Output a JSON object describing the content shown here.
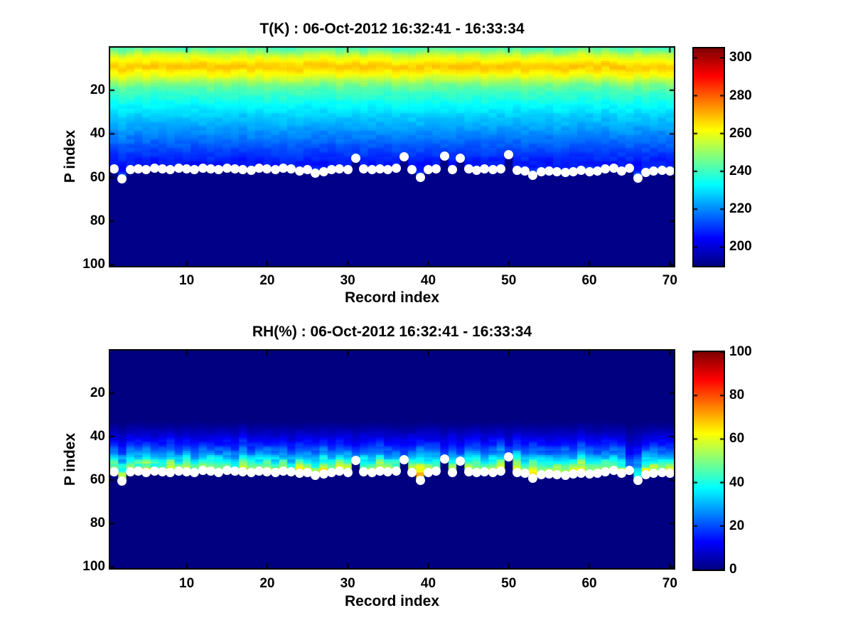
{
  "figure": {
    "background": "#ffffff",
    "axis_color": "#000000",
    "text_color": "#000000",
    "marker_color": "#ffffff"
  },
  "chart_data": [
    {
      "type": "heatmap",
      "title": "T(K) : 06-Oct-2012 16:32:41 - 16:33:34",
      "xlabel": "Record index",
      "ylabel": "P index",
      "colormap": "jet",
      "grid": false,
      "x_range": [
        1,
        70
      ],
      "y_range": [
        1,
        100
      ],
      "y_axis_reversed": true,
      "xticks": [
        10,
        20,
        30,
        40,
        50,
        60,
        70
      ],
      "yticks": [
        20,
        40,
        60,
        80,
        100
      ],
      "clim": [
        190,
        305
      ],
      "colorbar_ticks": [
        200,
        220,
        240,
        260,
        280,
        300
      ],
      "colorbar_position": "right",
      "profile_anchors": [
        [
          1,
          242
        ],
        [
          2,
          246
        ],
        [
          3,
          251
        ],
        [
          4,
          256
        ],
        [
          5,
          259
        ],
        [
          6,
          261
        ],
        [
          7,
          263
        ],
        [
          8,
          266
        ],
        [
          9,
          268
        ],
        [
          10,
          268
        ],
        [
          11,
          265
        ],
        [
          12,
          263
        ],
        [
          13,
          261
        ],
        [
          14,
          258
        ],
        [
          15,
          255
        ],
        [
          16,
          252
        ],
        [
          17,
          249
        ],
        [
          18,
          246
        ],
        [
          19,
          244
        ],
        [
          20,
          242
        ],
        [
          22,
          239
        ],
        [
          24,
          237
        ],
        [
          26,
          234
        ],
        [
          28,
          232
        ],
        [
          30,
          230
        ],
        [
          33,
          227
        ],
        [
          36,
          224
        ],
        [
          39,
          221
        ],
        [
          42,
          218
        ],
        [
          45,
          215
        ],
        [
          48,
          212
        ],
        [
          51,
          209
        ],
        [
          54,
          206
        ],
        [
          57,
          204
        ],
        [
          100,
          204
        ]
      ],
      "below_surface_value": 191,
      "surface_marker": {
        "shape": "circle",
        "color": "#ffffff",
        "p_values": [
          56.2,
          60.5,
          56.3,
          56.0,
          56.4,
          55.8,
          56.2,
          56.5,
          55.8,
          56.2,
          56.5,
          55.7,
          56.0,
          56.4,
          55.6,
          55.9,
          56.3,
          56.6,
          55.8,
          56.1,
          56.4,
          55.8,
          56.2,
          57.0,
          56.5,
          58.0,
          57.3,
          56.5,
          56.0,
          56.4,
          51.0,
          56.2,
          56.5,
          56.0,
          56.3,
          55.8,
          50.5,
          56.4,
          60.0,
          56.5,
          56.0,
          50.2,
          56.5,
          51.2,
          56.2,
          56.6,
          56.1,
          56.4,
          56.0,
          49.5,
          56.6,
          57.0,
          59.0,
          57.4,
          57.1,
          57.5,
          57.8,
          57.2,
          56.8,
          57.2,
          56.9,
          56.2,
          55.7,
          57.0,
          55.6,
          60.3,
          57.6,
          57.0,
          56.7,
          57.0
        ]
      }
    },
    {
      "type": "heatmap",
      "title": "RH(%) : 06-Oct-2012 16:32:41 - 16:33:34",
      "xlabel": "Record index",
      "ylabel": "P index",
      "colormap": "jet",
      "grid": false,
      "x_range": [
        1,
        70
      ],
      "y_range": [
        1,
        100
      ],
      "y_axis_reversed": true,
      "xticks": [
        10,
        20,
        30,
        40,
        50,
        60,
        70
      ],
      "yticks": [
        20,
        40,
        60,
        80,
        100
      ],
      "clim": [
        0,
        100
      ],
      "colorbar_ticks": [
        0,
        20,
        40,
        60,
        80,
        100
      ],
      "colorbar_position": "right",
      "profile_anchors": [
        [
          1,
          0
        ],
        [
          33,
          0
        ],
        [
          35,
          2
        ],
        [
          38,
          6
        ],
        [
          41,
          11
        ],
        [
          44,
          17
        ],
        [
          47,
          25
        ],
        [
          49,
          32
        ],
        [
          51,
          40
        ],
        [
          53,
          49
        ],
        [
          54,
          54
        ],
        [
          55,
          58
        ],
        [
          56,
          61
        ],
        [
          57,
          63
        ],
        [
          60,
          64
        ],
        [
          100,
          64
        ]
      ],
      "below_surface_value": 0,
      "column_scale": [
        0.95,
        0.8,
        1.0,
        0.9,
        1.05,
        0.85,
        0.95,
        1.1,
        0.9,
        1.0,
        0.8,
        0.95,
        1.05,
        0.9,
        1.0,
        0.85,
        1.1,
        0.95,
        0.9,
        1.05,
        0.9,
        1.0,
        0.8,
        1.05,
        0.95,
        0.85,
        1.0,
        0.9,
        1.1,
        0.95,
        0.7,
        1.0,
        0.9,
        1.05,
        0.85,
        0.95,
        0.75,
        1.0,
        1.05,
        0.9,
        0.95,
        0.7,
        1.0,
        0.8,
        0.95,
        1.05,
        0.9,
        1.0,
        1.1,
        0.75,
        1.05,
        0.95,
        1.0,
        0.9,
        0.85,
        0.95,
        1.0,
        0.9,
        1.05,
        0.95,
        0.85,
        0.9,
        1.0,
        0.95,
        0.5,
        0.55,
        0.95,
        1.0,
        0.9,
        0.95
      ],
      "surface_marker": {
        "shape": "circle",
        "color": "#ffffff",
        "p_values": [
          56.2,
          60.5,
          56.3,
          56.0,
          56.4,
          55.8,
          56.2,
          56.5,
          55.8,
          56.2,
          56.5,
          55.7,
          56.0,
          56.4,
          55.6,
          55.9,
          56.3,
          56.6,
          55.8,
          56.1,
          56.4,
          55.8,
          56.2,
          57.0,
          56.5,
          58.0,
          57.3,
          56.5,
          56.0,
          56.4,
          51.0,
          56.2,
          56.5,
          56.0,
          56.3,
          55.8,
          50.5,
          56.4,
          60.0,
          56.5,
          56.0,
          50.2,
          56.5,
          51.2,
          56.2,
          56.6,
          56.1,
          56.4,
          56.0,
          49.5,
          56.6,
          57.0,
          59.0,
          57.4,
          57.1,
          57.5,
          57.8,
          57.2,
          56.8,
          57.2,
          56.9,
          56.2,
          55.7,
          57.0,
          55.6,
          60.3,
          57.6,
          57.0,
          56.7,
          57.0
        ]
      }
    }
  ]
}
